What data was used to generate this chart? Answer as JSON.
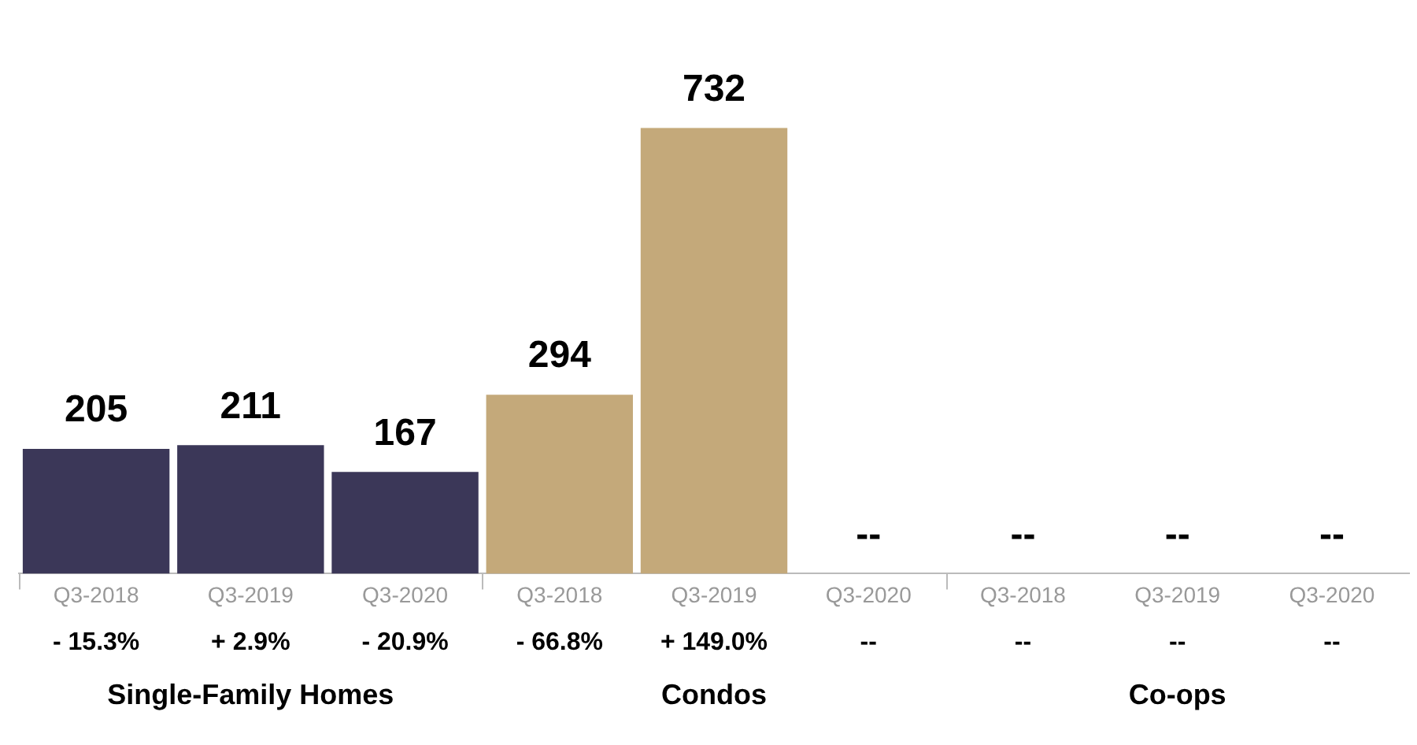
{
  "chart_data": {
    "type": "bar",
    "categories": [
      "Q3-2018",
      "Q3-2019",
      "Q3-2020",
      "Q3-2018",
      "Q3-2019",
      "Q3-2020",
      "Q3-2018",
      "Q3-2019",
      "Q3-2020"
    ],
    "values": [
      205,
      211,
      167,
      294,
      732,
      null,
      null,
      null,
      null
    ],
    "colors": [
      "#3b3758",
      "#3b3758",
      "#3b3758",
      "#c4a97a",
      "#c4a97a",
      "#c4a97a",
      "#c4a97a",
      "#c4a97a",
      "#c4a97a"
    ],
    "value_labels": [
      "205",
      "211",
      "167",
      "294",
      "732",
      "--",
      "--",
      "--",
      "--"
    ],
    "annotations": [
      "- 15.3%",
      "+ 2.9%",
      "- 20.9%",
      "- 66.8%",
      "+ 149.0%",
      "--",
      "--",
      "--",
      "--",
      "Single-Family Homes",
      "Condos",
      "Co-ops"
    ],
    "grid": false,
    "legend": false
  }
}
